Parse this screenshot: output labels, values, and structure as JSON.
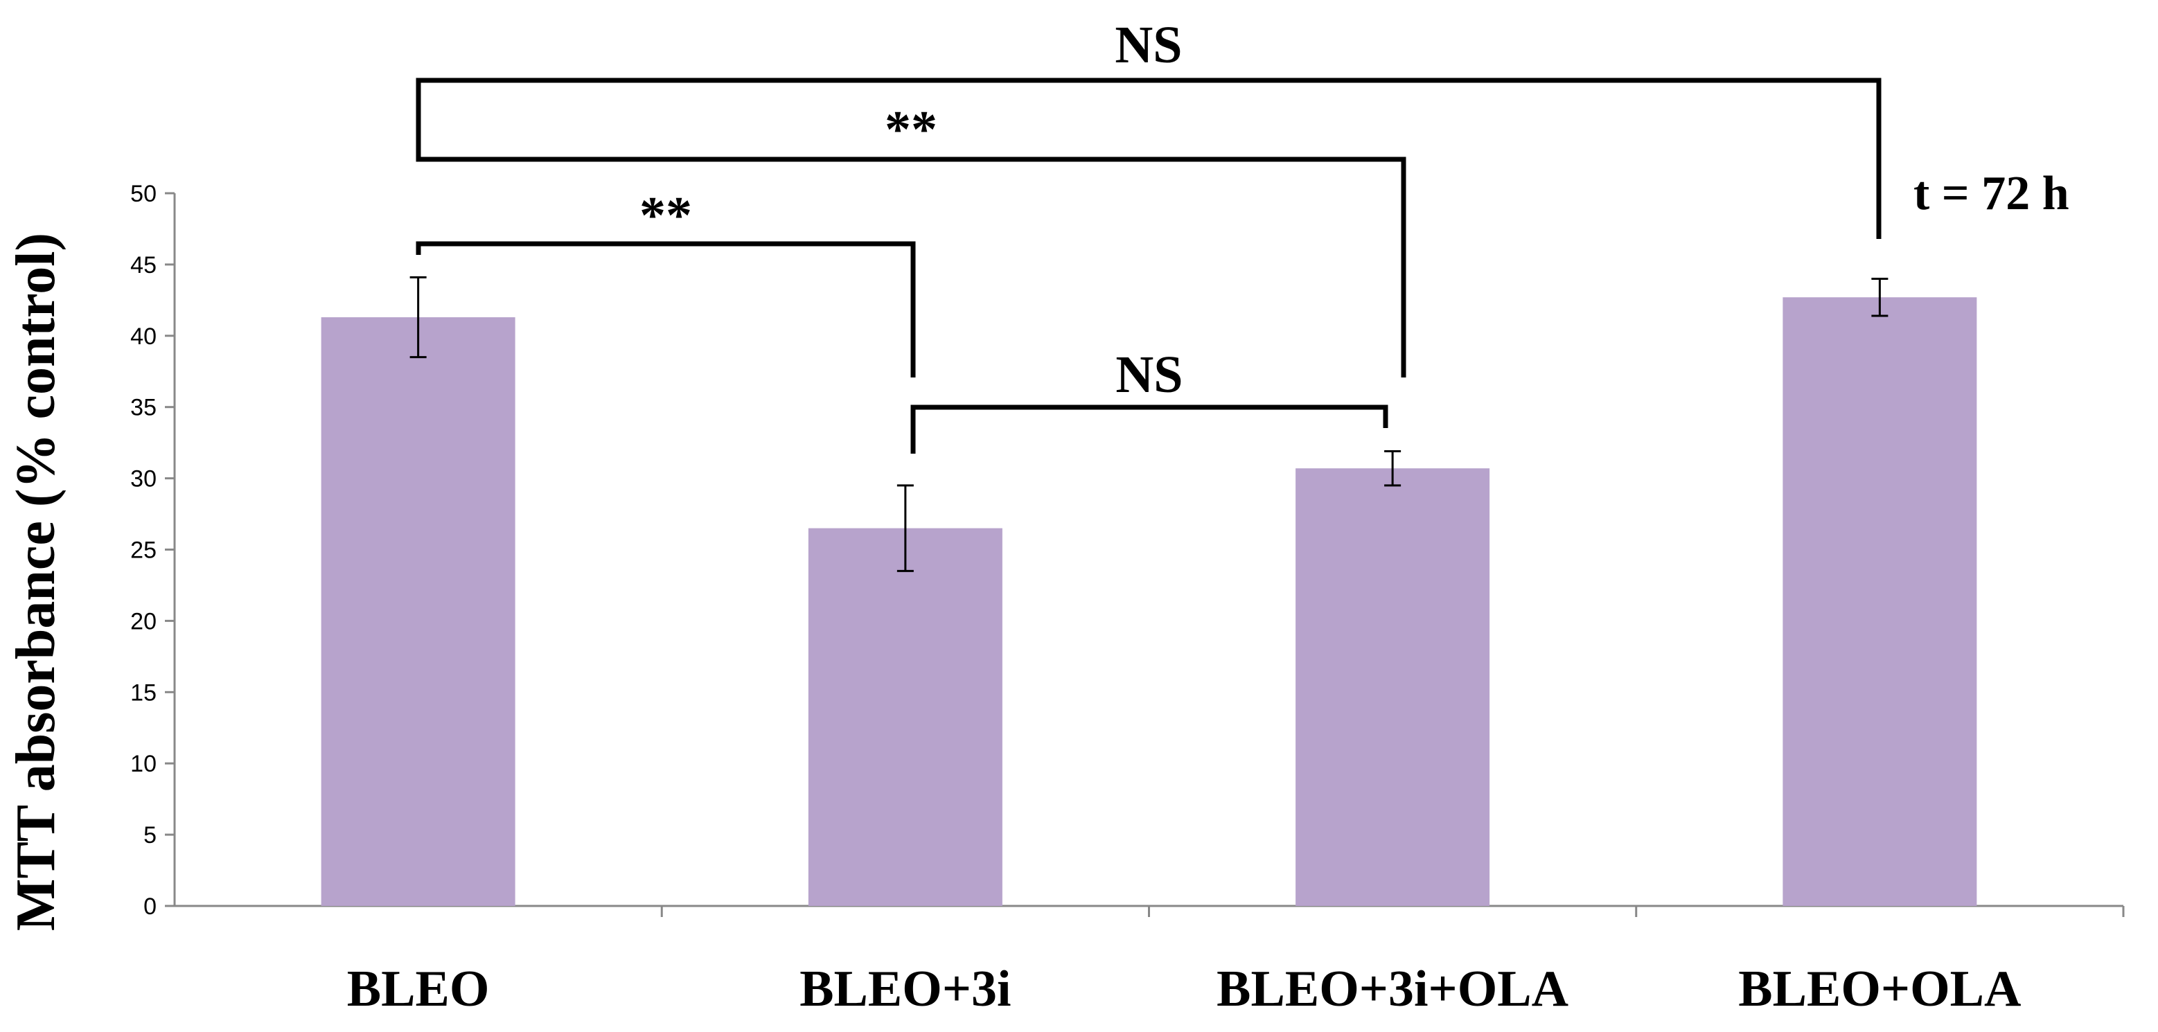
{
  "chart_data": {
    "type": "bar",
    "categories": [
      "BLEO",
      "BLEO+3i",
      "BLEO+3i+OLA",
      "BLEO+OLA"
    ],
    "values": [
      41.3,
      26.5,
      30.7,
      42.7
    ],
    "errors": [
      2.8,
      3.0,
      1.2,
      1.3
    ],
    "ylabel": "MTT absorbance (% control)",
    "xlabel": "",
    "ylim": [
      0,
      50
    ],
    "yticks": [
      0,
      5,
      10,
      15,
      20,
      25,
      30,
      35,
      40,
      45,
      50
    ],
    "bar_color": "#b7a3cc",
    "grid": false,
    "annotation": "t = 72 h",
    "significance": [
      {
        "from": 0,
        "to": 3,
        "label": "NS"
      },
      {
        "from": 0,
        "to": 2,
        "label": "**"
      },
      {
        "from": 0,
        "to": 1,
        "label": "**"
      },
      {
        "from": 1,
        "to": 2,
        "label": "NS"
      }
    ]
  }
}
